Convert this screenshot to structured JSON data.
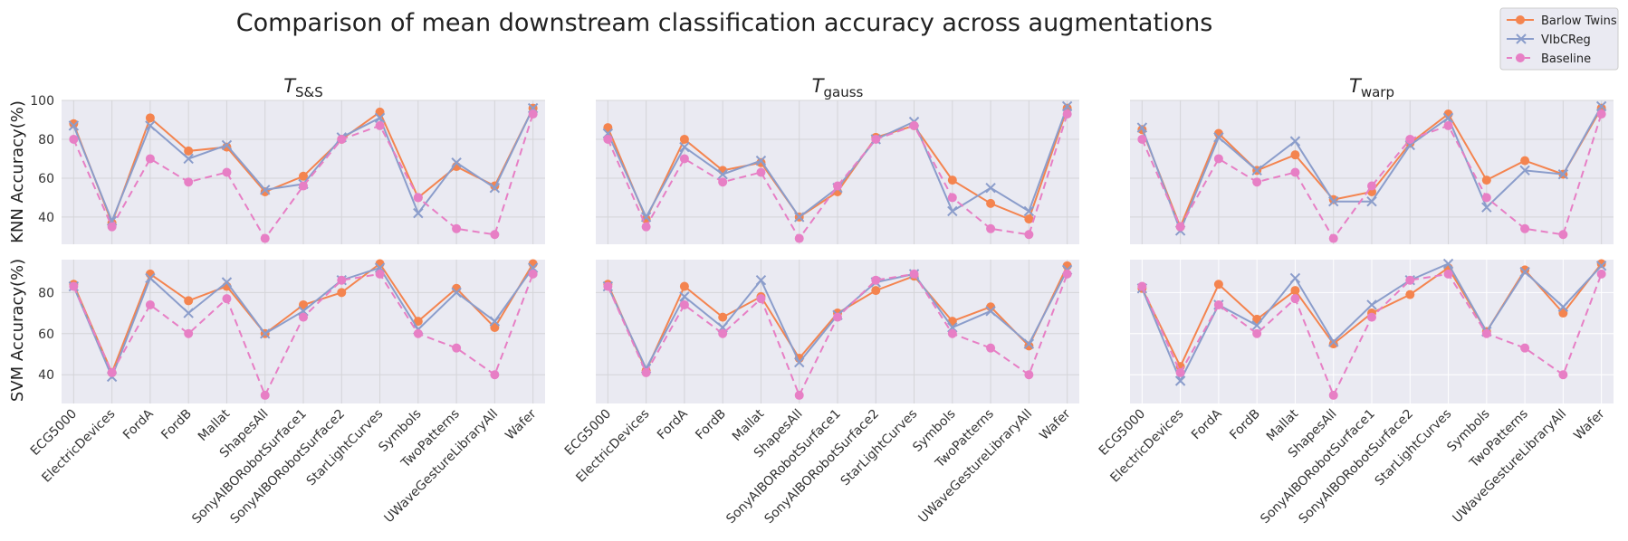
{
  "figure": {
    "title": "Comparison of mean downstream classification accuracy across augmentations",
    "panel_titles": [
      {
        "main": "T",
        "sub": "S&S"
      },
      {
        "main": "T",
        "sub": "gauss"
      },
      {
        "main": "T",
        "sub": "warp"
      }
    ],
    "row_ylabels": [
      "KNN Accuracy(%)",
      "SVM Accuracy(%)"
    ],
    "legend": [
      "Barlow Twins",
      "VIbCReg",
      "Baseline"
    ]
  },
  "colors": {
    "barlow": "#f4844f",
    "vibcreg": "#8b9dcb",
    "baseline": "#e77fc5",
    "axes_bg": "#eaeaf2",
    "grid_top": "#d4d4d8",
    "grid_bottom": "#d4d4d8",
    "grid_bottom_warp": "#ffffff"
  },
  "chart_data": [
    {
      "type": "line",
      "row": "KNN",
      "augmentation": "S&S",
      "categories": [
        "ECG5000",
        "ElectricDevices",
        "FordA",
        "FordB",
        "Mallat",
        "ShapesAll",
        "SonyAIBORobotSurface1",
        "SonyAIBORobotSurface2",
        "StarLightCurves",
        "Symbols",
        "TwoPatterns",
        "UWaveGestureLibraryAll",
        "Wafer"
      ],
      "ylim": [
        26,
        100
      ],
      "yticks": [
        40,
        60,
        80,
        100
      ],
      "series": [
        {
          "name": "Barlow Twins",
          "marker": "o",
          "style": "solid",
          "values": [
            88,
            37,
            91,
            74,
            76,
            53,
            61,
            80,
            94,
            50,
            66,
            56,
            96
          ]
        },
        {
          "name": "VIbCReg",
          "marker": "x",
          "style": "solid",
          "values": [
            87,
            38,
            87,
            70,
            77,
            54,
            57,
            81,
            91,
            42,
            68,
            55,
            96
          ]
        },
        {
          "name": "Baseline",
          "marker": "o",
          "style": "dashed",
          "values": [
            80,
            35,
            70,
            58,
            63,
            29,
            56,
            80,
            87,
            50,
            34,
            31,
            93
          ]
        }
      ]
    },
    {
      "type": "line",
      "row": "KNN",
      "augmentation": "gauss",
      "categories": [
        "ECG5000",
        "ElectricDevices",
        "FordA",
        "FordB",
        "Mallat",
        "ShapesAll",
        "SonyAIBORobotSurface1",
        "SonyAIBORobotSurface2",
        "StarLightCurves",
        "Symbols",
        "TwoPatterns",
        "UWaveGestureLibraryAll",
        "Wafer"
      ],
      "ylim": [
        26,
        100
      ],
      "yticks": [
        40,
        60,
        80,
        100
      ],
      "series": [
        {
          "name": "Barlow Twins",
          "marker": "o",
          "style": "solid",
          "values": [
            86,
            39,
            80,
            64,
            68,
            40,
            53,
            81,
            87,
            59,
            47,
            39,
            96
          ]
        },
        {
          "name": "VIbCReg",
          "marker": "x",
          "style": "solid",
          "values": [
            83,
            40,
            76,
            62,
            69,
            40,
            55,
            80,
            89,
            43,
            55,
            43,
            97
          ]
        },
        {
          "name": "Baseline",
          "marker": "o",
          "style": "dashed",
          "values": [
            80,
            35,
            70,
            58,
            63,
            29,
            56,
            80,
            87,
            50,
            34,
            31,
            93
          ]
        }
      ]
    },
    {
      "type": "line",
      "row": "KNN",
      "augmentation": "warp",
      "categories": [
        "ECG5000",
        "ElectricDevices",
        "FordA",
        "FordB",
        "Mallat",
        "ShapesAll",
        "SonyAIBORobotSurface1",
        "SonyAIBORobotSurface2",
        "StarLightCurves",
        "Symbols",
        "TwoPatterns",
        "UWaveGestureLibraryAll",
        "Wafer"
      ],
      "ylim": [
        26,
        100
      ],
      "yticks": [
        40,
        60,
        80,
        100
      ],
      "series": [
        {
          "name": "Barlow Twins",
          "marker": "o",
          "style": "solid",
          "values": [
            85,
            35,
            83,
            64,
            72,
            49,
            53,
            78,
            93,
            59,
            69,
            62,
            96
          ]
        },
        {
          "name": "VIbCReg",
          "marker": "x",
          "style": "solid",
          "values": [
            86,
            33,
            81,
            64,
            79,
            48,
            48,
            77,
            91,
            45,
            64,
            62,
            97
          ]
        },
        {
          "name": "Baseline",
          "marker": "o",
          "style": "dashed",
          "values": [
            80,
            35,
            70,
            58,
            63,
            29,
            56,
            80,
            87,
            50,
            34,
            31,
            93
          ]
        }
      ]
    },
    {
      "type": "line",
      "row": "SVM",
      "augmentation": "S&S",
      "categories": [
        "ECG5000",
        "ElectricDevices",
        "FordA",
        "FordB",
        "Mallat",
        "ShapesAll",
        "SonyAIBORobotSurface1",
        "SonyAIBORobotSurface2",
        "StarLightCurves",
        "Symbols",
        "TwoPatterns",
        "UWaveGestureLibraryAll",
        "Wafer"
      ],
      "ylim": [
        26,
        96
      ],
      "yticks": [
        40,
        60,
        80
      ],
      "series": [
        {
          "name": "Barlow Twins",
          "marker": "o",
          "style": "solid",
          "values": [
            84,
            41,
            89,
            76,
            83,
            60,
            74,
            80,
            94,
            66,
            82,
            63,
            94
          ]
        },
        {
          "name": "VIbCReg",
          "marker": "x",
          "style": "solid",
          "values": [
            83,
            39,
            87,
            70,
            85,
            60,
            71,
            86,
            92,
            62,
            80,
            66,
            92
          ]
        },
        {
          "name": "Baseline",
          "marker": "o",
          "style": "dashed",
          "values": [
            83,
            41,
            74,
            60,
            77,
            30,
            68,
            86,
            89,
            60,
            53,
            40,
            89
          ]
        }
      ]
    },
    {
      "type": "line",
      "row": "SVM",
      "augmentation": "gauss",
      "categories": [
        "ECG5000",
        "ElectricDevices",
        "FordA",
        "FordB",
        "Mallat",
        "ShapesAll",
        "SonyAIBORobotSurface1",
        "SonyAIBORobotSurface2",
        "StarLightCurves",
        "Symbols",
        "TwoPatterns",
        "UWaveGestureLibraryAll",
        "Wafer"
      ],
      "ylim": [
        26,
        96
      ],
      "yticks": [
        40,
        60,
        80
      ],
      "series": [
        {
          "name": "Barlow Twins",
          "marker": "o",
          "style": "solid",
          "values": [
            84,
            42,
            83,
            68,
            78,
            48,
            70,
            81,
            88,
            66,
            73,
            54,
            93
          ]
        },
        {
          "name": "VIbCReg",
          "marker": "x",
          "style": "solid",
          "values": [
            83,
            43,
            78,
            63,
            86,
            46,
            69,
            85,
            89,
            63,
            71,
            55,
            91
          ]
        },
        {
          "name": "Baseline",
          "marker": "o",
          "style": "dashed",
          "values": [
            83,
            41,
            74,
            60,
            77,
            30,
            68,
            86,
            89,
            60,
            53,
            40,
            89
          ]
        }
      ]
    },
    {
      "type": "line",
      "row": "SVM",
      "augmentation": "warp",
      "categories": [
        "ECG5000",
        "ElectricDevices",
        "FordA",
        "FordB",
        "Mallat",
        "ShapesAll",
        "SonyAIBORobotSurface1",
        "SonyAIBORobotSurface2",
        "StarLightCurves",
        "Symbols",
        "TwoPatterns",
        "UWaveGestureLibraryAll",
        "Wafer"
      ],
      "ylim": [
        26,
        96
      ],
      "yticks": [
        40,
        60,
        80
      ],
      "series": [
        {
          "name": "Barlow Twins",
          "marker": "o",
          "style": "solid",
          "values": [
            82,
            44,
            84,
            67,
            81,
            55,
            70,
            79,
            92,
            61,
            91,
            70,
            94
          ]
        },
        {
          "name": "VIbCReg",
          "marker": "x",
          "style": "solid",
          "values": [
            82,
            37,
            74,
            64,
            87,
            56,
            74,
            86,
            94,
            61,
            90,
            73,
            93
          ]
        },
        {
          "name": "Baseline",
          "marker": "o",
          "style": "dashed",
          "values": [
            83,
            41,
            74,
            60,
            77,
            30,
            68,
            86,
            89,
            60,
            53,
            40,
            89
          ]
        }
      ]
    }
  ]
}
